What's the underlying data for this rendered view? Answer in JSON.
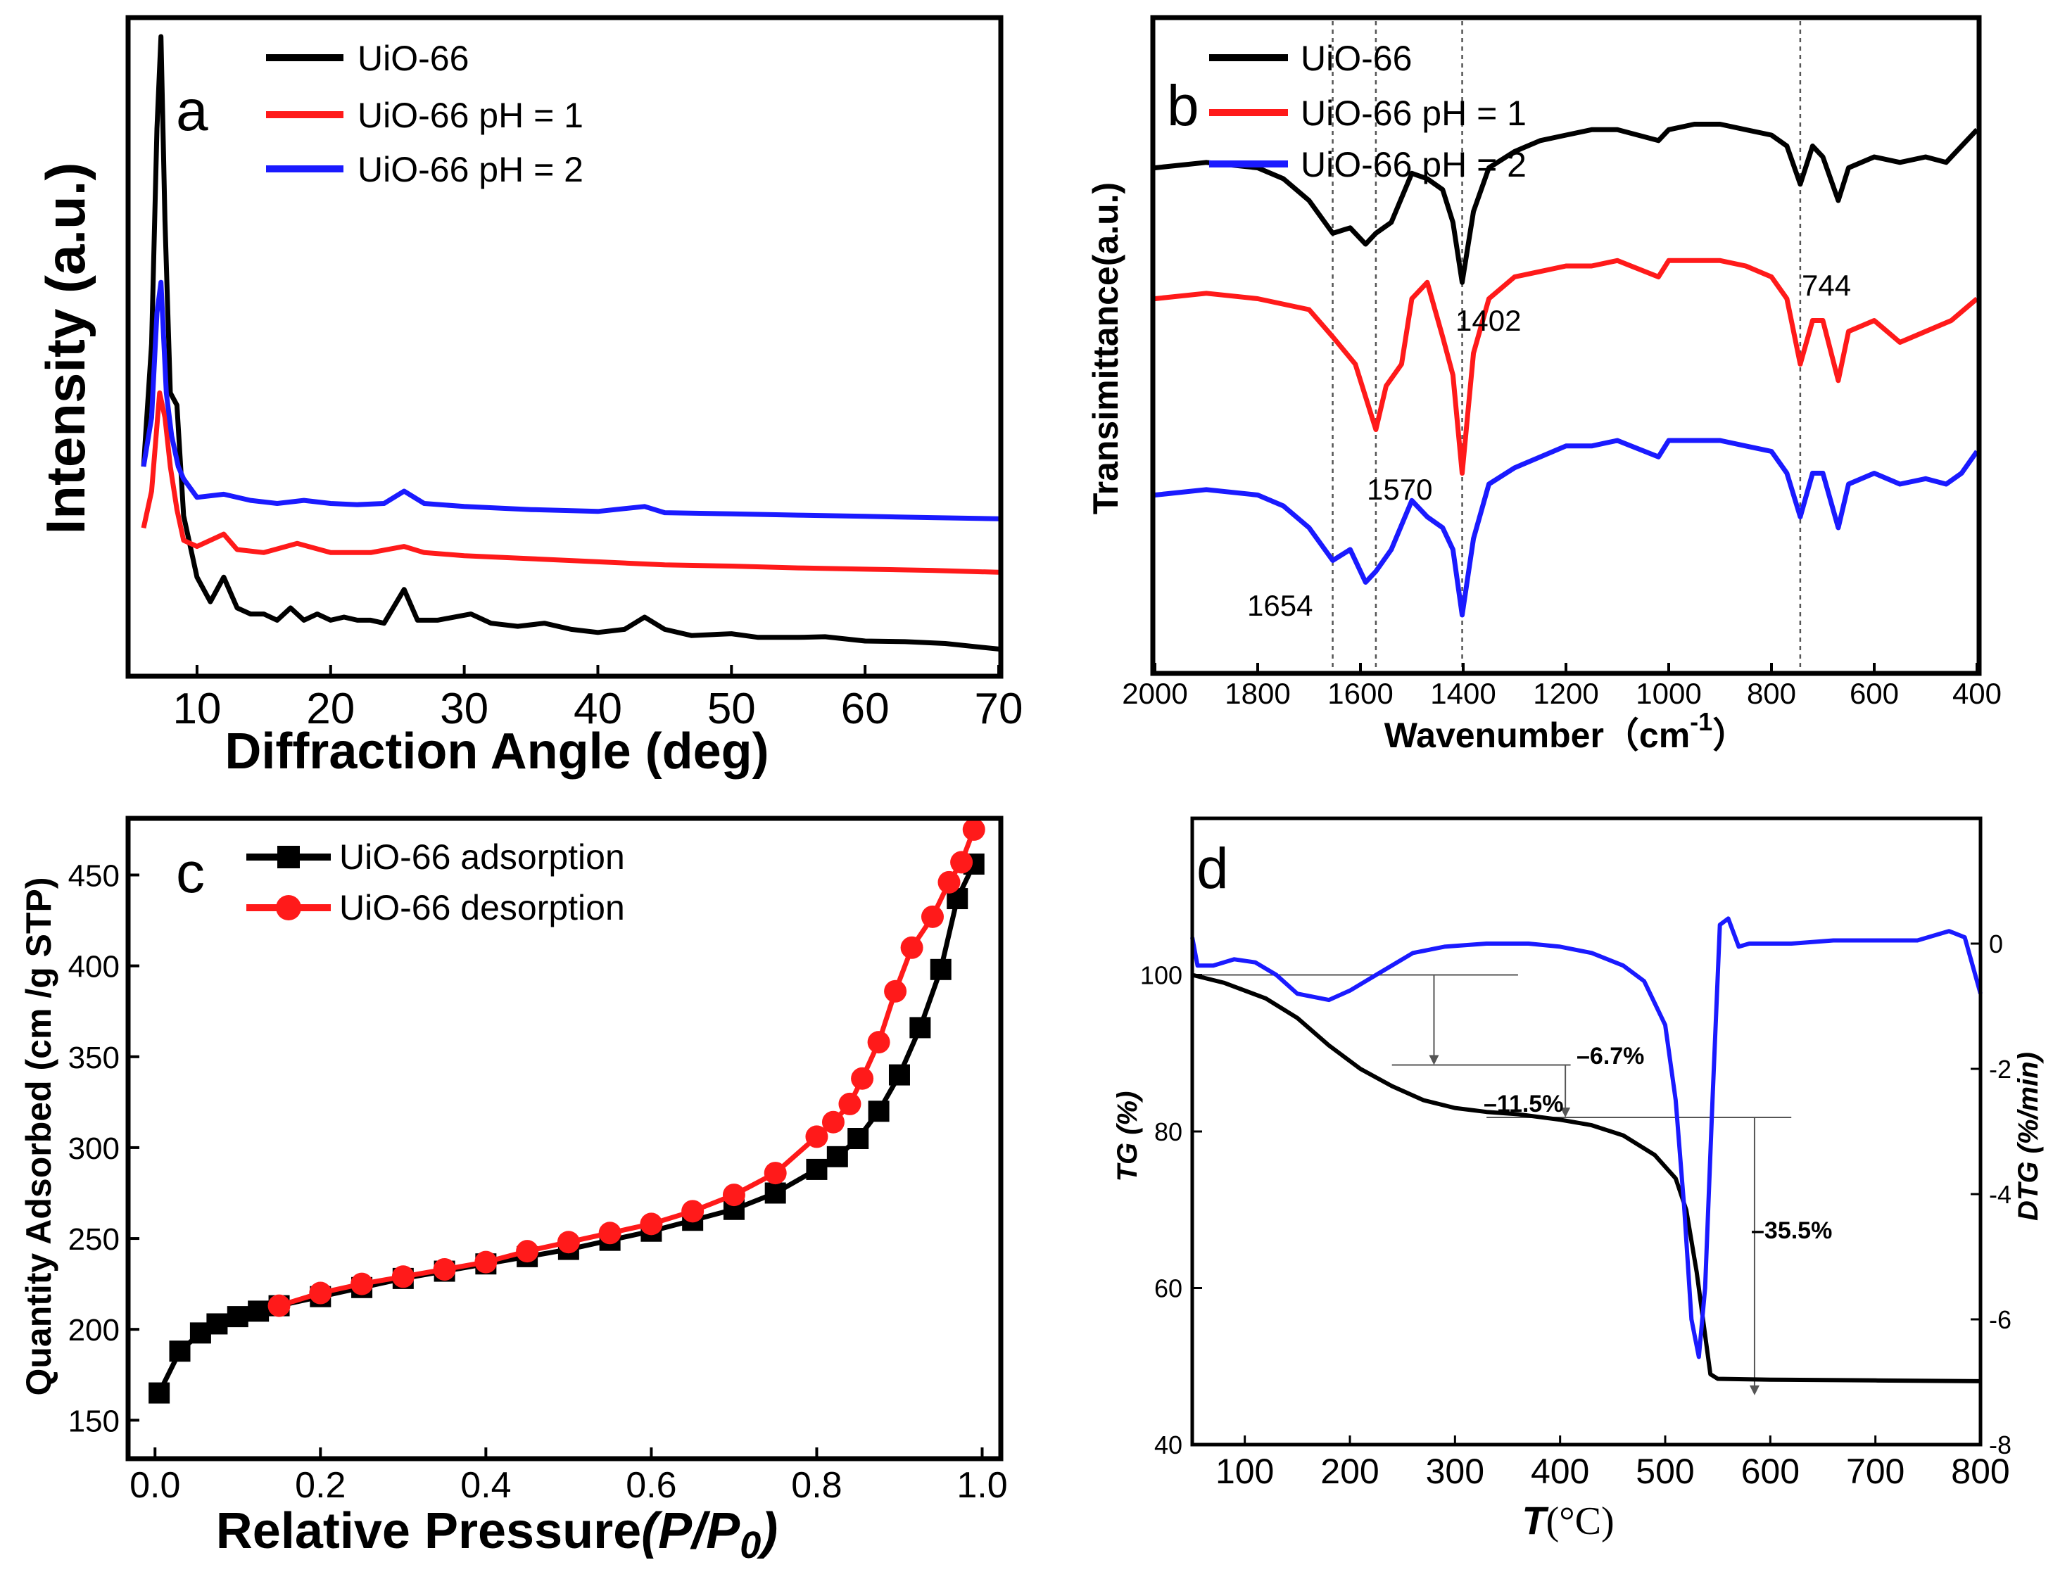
{
  "colors": {
    "black": "#000000",
    "red": "#ff1a1a",
    "blue": "#1a1aff",
    "axis": "#000000",
    "grid": "#555555"
  },
  "chart_data": [
    {
      "id": "a",
      "type": "line",
      "panel_label": "a",
      "xlabel": "Diffraction Angle (deg)",
      "ylabel": "Intensity (a.u.)",
      "xlim": [
        5,
        70
      ],
      "ylim": [
        0,
        100
      ],
      "xticks": [
        10,
        20,
        30,
        40,
        50,
        60,
        70
      ],
      "xtick_labels": [
        "10",
        "20",
        "30",
        "40",
        "50",
        "60",
        "70"
      ],
      "legend": [
        "UiO-66",
        "UiO-66 pH = 1",
        "UiO-66 pH = 2"
      ],
      "legend_position": "top-right",
      "series": [
        {
          "name": "UiO-66",
          "color": "#000000",
          "x": [
            6,
            6.6,
            7.0,
            7.3,
            7.6,
            8.0,
            8.5,
            9.0,
            10,
            11,
            12.0,
            13,
            14,
            15,
            16,
            17,
            18,
            19,
            20,
            21,
            22,
            23,
            24,
            25.5,
            26.5,
            28,
            30.5,
            32,
            34,
            36,
            38,
            40,
            42,
            43.5,
            45,
            47,
            50,
            52,
            55,
            57,
            60,
            63,
            66,
            70
          ],
          "y": [
            30,
            50,
            85,
            100,
            70,
            42,
            40,
            22,
            12,
            8,
            12,
            7,
            6,
            6,
            5,
            7,
            5,
            6,
            5,
            5.5,
            5,
            5,
            4.5,
            10,
            5,
            5,
            6,
            4.5,
            4,
            4.5,
            3.5,
            3,
            3.5,
            5.5,
            3.5,
            2.5,
            2.8,
            2.2,
            2.2,
            2.3,
            1.6,
            1.5,
            1.2,
            0.3
          ]
        },
        {
          "name": "UiO-66 pH = 1",
          "color": "#ff1a1a",
          "x": [
            6,
            6.6,
            7.2,
            7.6,
            8.0,
            8.5,
            9,
            10,
            12,
            13,
            15,
            17.5,
            20,
            23,
            25.5,
            27,
            30,
            35,
            40,
            45,
            50,
            55,
            60,
            65,
            70
          ],
          "y": [
            20,
            26,
            42,
            38,
            30,
            23,
            18,
            17,
            19,
            16.5,
            16,
            17.5,
            16,
            16,
            17,
            16,
            15.5,
            15,
            14.5,
            14,
            13.8,
            13.5,
            13.3,
            13.1,
            12.8
          ]
        },
        {
          "name": "UiO-66 pH = 2",
          "color": "#1a1aff",
          "x": [
            6,
            6.6,
            7.0,
            7.3,
            7.7,
            8.1,
            8.6,
            9,
            10,
            12,
            14,
            16,
            18,
            20,
            22,
            24,
            25.5,
            27,
            30,
            35,
            40,
            43.5,
            45,
            50,
            55,
            60,
            65,
            70
          ],
          "y": [
            30,
            38,
            55,
            60,
            42,
            35,
            30,
            28,
            25,
            25.5,
            24.5,
            24,
            24.5,
            24,
            23.8,
            24,
            26,
            24,
            23.5,
            23,
            22.7,
            23.5,
            22.5,
            22.3,
            22.1,
            21.9,
            21.7,
            21.5
          ]
        }
      ]
    },
    {
      "id": "b",
      "type": "line",
      "panel_label": "b",
      "xlabel": "Wavenumber（cm",
      "xlabel_sup": "-1",
      "xlabel_close": "）",
      "ylabel": "Transimittance(a.u.)",
      "xlim": [
        2000,
        400
      ],
      "ylim": [
        0,
        100
      ],
      "xticks": [
        2000,
        1800,
        1600,
        1400,
        1200,
        1000,
        800,
        600,
        400
      ],
      "xtick_labels": [
        "2000",
        "1800",
        "1600",
        "1400",
        "1200",
        "1000",
        "800",
        "600",
        "400"
      ],
      "legend": [
        "UiO-66",
        "UiO-66 pH = 1",
        "UiO-66 pH = 2"
      ],
      "legend_position": "top-left",
      "reference_lines": [
        1654,
        1570,
        1402,
        744
      ],
      "annotations": [
        "1402",
        "744",
        "1570",
        "1654"
      ],
      "series": [
        {
          "name": "UiO-66",
          "color": "#000000",
          "x": [
            2000,
            1900,
            1800,
            1750,
            1700,
            1654,
            1620,
            1590,
            1570,
            1540,
            1500,
            1470,
            1440,
            1420,
            1402,
            1380,
            1350,
            1300,
            1250,
            1200,
            1150,
            1100,
            1020,
            1000,
            950,
            900,
            850,
            800,
            770,
            744,
            720,
            700,
            670,
            650,
            600,
            550,
            500,
            460,
            430,
            400
          ],
          "y": [
            86,
            87,
            86,
            84,
            80,
            74,
            75,
            72,
            74,
            76,
            85,
            84,
            82,
            76,
            65,
            78,
            86,
            89,
            91,
            92,
            93,
            93,
            91,
            93,
            94,
            94,
            93,
            92,
            90,
            83,
            90,
            88,
            80,
            86,
            88,
            87,
            88,
            87,
            90,
            93
          ]
        },
        {
          "name": "UiO-66 pH = 1",
          "color": "#ff1a1a",
          "x": [
            2000,
            1900,
            1800,
            1700,
            1654,
            1610,
            1590,
            1570,
            1550,
            1520,
            1500,
            1470,
            1440,
            1420,
            1402,
            1380,
            1350,
            1300,
            1250,
            1200,
            1150,
            1100,
            1020,
            1000,
            950,
            900,
            850,
            800,
            770,
            744,
            720,
            700,
            670,
            650,
            600,
            550,
            500,
            450,
            400
          ],
          "y": [
            62,
            63,
            62,
            60,
            55,
            50,
            44,
            38,
            46,
            50,
            62,
            65,
            55,
            48,
            30,
            52,
            62,
            66,
            67,
            68,
            68,
            69,
            66,
            69,
            69,
            69,
            68,
            66,
            62,
            50,
            58,
            58,
            47,
            56,
            58,
            54,
            56,
            58,
            62
          ]
        },
        {
          "name": "UiO-66 pH = 2",
          "color": "#1a1aff",
          "x": [
            2000,
            1900,
            1800,
            1750,
            1700,
            1654,
            1620,
            1590,
            1570,
            1540,
            1500,
            1470,
            1440,
            1420,
            1402,
            1380,
            1350,
            1300,
            1250,
            1200,
            1150,
            1100,
            1020,
            1000,
            950,
            900,
            850,
            800,
            770,
            744,
            720,
            700,
            670,
            650,
            600,
            550,
            500,
            460,
            430,
            400
          ],
          "y": [
            26,
            27,
            26,
            24,
            20,
            14,
            16,
            10,
            12,
            16,
            25,
            22,
            20,
            16,
            4,
            18,
            28,
            31,
            33,
            35,
            35,
            36,
            33,
            36,
            36,
            36,
            35,
            34,
            30,
            22,
            30,
            30,
            20,
            28,
            30,
            28,
            29,
            28,
            30,
            34
          ]
        }
      ]
    },
    {
      "id": "c",
      "type": "line",
      "panel_label": "c",
      "xlabel": "Relative Pressure",
      "xlabel_italic": "(P/P",
      "xlabel_sub": "0",
      "xlabel_close": ")",
      "ylabel": "Quantity Adsorbed (cm  /g STP)",
      "xlim": [
        -0.03,
        1.02
      ],
      "ylim": [
        130,
        480
      ],
      "xticks": [
        0.0,
        0.2,
        0.4,
        0.6,
        0.8,
        1.0
      ],
      "xtick_labels": [
        "0.0",
        "0.2",
        "0.4",
        "0.6",
        "0.8",
        "1.0"
      ],
      "yticks": [
        150,
        200,
        250,
        300,
        350,
        400,
        450
      ],
      "ytick_labels": [
        "150",
        "200",
        "250",
        "300",
        "350",
        "400",
        "450"
      ],
      "legend": [
        "UiO-66 adsorption",
        "UiO-66 desorption"
      ],
      "legend_position": "top-left",
      "series": [
        {
          "name": "UiO-66 adsorption",
          "color": "#000000",
          "marker": "square",
          "x": [
            0.005,
            0.03,
            0.055,
            0.075,
            0.1,
            0.125,
            0.15,
            0.2,
            0.25,
            0.3,
            0.35,
            0.4,
            0.45,
            0.5,
            0.55,
            0.6,
            0.65,
            0.7,
            0.75,
            0.8,
            0.825,
            0.85,
            0.875,
            0.9,
            0.925,
            0.95,
            0.97,
            0.99
          ],
          "y": [
            165,
            188,
            198,
            203,
            207,
            210,
            213,
            218,
            223,
            228,
            232,
            236,
            240,
            244,
            249,
            254,
            260,
            266,
            275,
            288,
            295,
            305,
            320,
            340,
            366,
            398,
            437,
            456
          ]
        },
        {
          "name": "UiO-66 desorption",
          "color": "#ff1a1a",
          "marker": "circle",
          "x": [
            0.99,
            0.975,
            0.96,
            0.94,
            0.915,
            0.895,
            0.875,
            0.855,
            0.84,
            0.82,
            0.8,
            0.75,
            0.7,
            0.65,
            0.6,
            0.55,
            0.5,
            0.45,
            0.4,
            0.35,
            0.3,
            0.25,
            0.2,
            0.15
          ],
          "y": [
            475,
            457,
            446,
            427,
            410,
            386,
            358,
            338,
            324,
            314,
            306,
            286,
            274,
            265,
            258,
            253,
            248,
            243,
            237,
            233,
            229,
            225,
            220,
            213
          ]
        }
      ]
    },
    {
      "id": "d",
      "type": "line",
      "panel_label": "d",
      "xlabel": "T",
      "xlabel_unit": "(°C)",
      "ylabel_left": "TG (%)",
      "ylabel_right": "DTG (%/min)",
      "xlim": [
        50,
        800
      ],
      "ylim_left": [
        40,
        120
      ],
      "ylim_right": [
        -8,
        2
      ],
      "xticks": [
        100,
        200,
        300,
        400,
        500,
        600,
        700,
        800
      ],
      "xtick_labels": [
        "100",
        "200",
        "300",
        "400",
        "500",
        "600",
        "700",
        "800"
      ],
      "yticks_left": [
        40,
        60,
        80,
        100
      ],
      "ytick_labels_left": [
        "40",
        "60",
        "80",
        "100"
      ],
      "yticks_right": [
        0,
        -2,
        -4,
        -6,
        -8
      ],
      "ytick_labels_right": [
        "0",
        "-2",
        "-4",
        "-6",
        "-8"
      ],
      "annotations": [
        "–11.5%",
        "–6.7%",
        "–35.5%"
      ],
      "steps": [
        {
          "x_from": 50,
          "x_to": 360,
          "y_top": 100,
          "x_arrow": 280,
          "y_bottom": 88.5,
          "label": "–11.5%"
        },
        {
          "x_from": 240,
          "x_to": 410,
          "y_top": 88.5,
          "x_arrow": 405,
          "y_bottom": 81.8,
          "label": "–6.7%"
        },
        {
          "x_from": 330,
          "x_to": 620,
          "y_top": 81.8,
          "x_arrow": 585,
          "y_bottom": 46.3,
          "label": "–35.5%"
        }
      ],
      "series": [
        {
          "name": "TG",
          "axis": "left",
          "color": "#000000",
          "x": [
            50,
            80,
            120,
            150,
            180,
            210,
            240,
            270,
            300,
            330,
            360,
            400,
            430,
            460,
            490,
            510,
            520,
            530,
            538,
            543,
            550,
            600,
            700,
            800
          ],
          "y": [
            100,
            99,
            97,
            94.5,
            91,
            88,
            85.8,
            84,
            83,
            82.5,
            82.2,
            81.5,
            80.8,
            79.5,
            77,
            74,
            70,
            62,
            54,
            49,
            48.4,
            48.3,
            48.2,
            48.1
          ]
        },
        {
          "name": "DTG",
          "axis": "right",
          "color": "#1a1aff",
          "x": [
            50,
            55,
            70,
            90,
            110,
            130,
            150,
            180,
            200,
            230,
            260,
            290,
            330,
            370,
            400,
            430,
            460,
            480,
            500,
            510,
            518,
            525,
            532,
            538,
            545,
            552,
            560,
            570,
            580,
            620,
            660,
            700,
            740,
            770,
            785,
            800
          ],
          "y": [
            0.1,
            -0.35,
            -0.35,
            -0.25,
            -0.3,
            -0.5,
            -0.8,
            -0.9,
            -0.75,
            -0.45,
            -0.15,
            -0.05,
            0.0,
            0.0,
            -0.05,
            -0.15,
            -0.35,
            -0.6,
            -1.3,
            -2.5,
            -4.2,
            -6.0,
            -6.6,
            -5.5,
            -2.5,
            0.3,
            0.4,
            -0.05,
            0.0,
            0.0,
            0.05,
            0.05,
            0.05,
            0.2,
            0.1,
            -0.8
          ]
        }
      ]
    }
  ]
}
